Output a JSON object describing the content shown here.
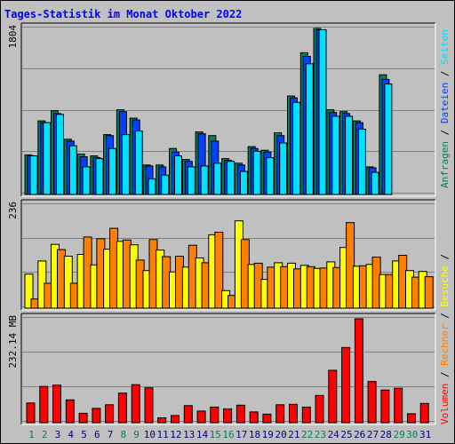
{
  "title": "Tages-Statistik im Monat Oktober 2022",
  "colors": {
    "frame_bg": "#c0c0c0",
    "plot_bg": "#c0c0c0",
    "grid": "#808080",
    "anfragen": "#00805c",
    "dateien": "#0040ff",
    "seiten": "#00e0ff",
    "besuche": "#ffff00",
    "rechner": "#ff8000",
    "volumen": "#ff0000",
    "weekday_label": "#000080",
    "weekend_label": "#00805c"
  },
  "side_legend": {
    "anfragen": "Anfragen",
    "dateien": "Dateien",
    "seiten": "Seiten",
    "besuche": "Besuche",
    "rechner": "Rechner",
    "volumen": "Volumen",
    "separator": " / "
  },
  "chart_data": [
    {
      "type": "bar",
      "max_label": "1804",
      "ylim": [
        0,
        1804
      ],
      "categories": [
        "1",
        "2",
        "3",
        "4",
        "5",
        "6",
        "7",
        "8",
        "9",
        "10",
        "11",
        "12",
        "13",
        "14",
        "15",
        "16",
        "17",
        "18",
        "19",
        "20",
        "21",
        "22",
        "23",
        "24",
        "25",
        "26",
        "27",
        "28",
        "29",
        "30",
        "31"
      ],
      "weekend_days": [
        "1",
        "2",
        "8",
        "9",
        "15",
        "16",
        "22",
        "23",
        "29",
        "30"
      ],
      "series": [
        {
          "name": "Anfragen",
          "values": [
            430,
            800,
            910,
            600,
            440,
            420,
            650,
            920,
            830,
            320,
            320,
            500,
            380,
            680,
            640,
            390,
            340,
            520,
            480,
            670,
            1070,
            1540,
            1804,
            920,
            900,
            800,
            300,
            1300,
            0,
            0,
            0
          ]
        },
        {
          "name": "Dateien",
          "values": [
            420,
            780,
            880,
            580,
            410,
            400,
            640,
            900,
            810,
            310,
            300,
            460,
            360,
            660,
            580,
            370,
            320,
            500,
            460,
            640,
            1050,
            1500,
            1790,
            890,
            880,
            780,
            290,
            1250,
            0,
            0,
            0
          ]
        },
        {
          "name": "Seiten",
          "values": [
            420,
            780,
            870,
            530,
            300,
            390,
            500,
            650,
            690,
            170,
            210,
            420,
            300,
            310,
            340,
            360,
            250,
            470,
            400,
            560,
            1000,
            1420,
            1790,
            850,
            850,
            710,
            240,
            1200,
            0,
            0,
            0
          ]
        }
      ]
    },
    {
      "type": "bar",
      "max_label": "236",
      "ylim": [
        0,
        236
      ],
      "categories": [
        "1",
        "2",
        "3",
        "4",
        "5",
        "6",
        "7",
        "8",
        "9",
        "10",
        "11",
        "12",
        "13",
        "14",
        "15",
        "16",
        "17",
        "18",
        "19",
        "20",
        "21",
        "22",
        "23",
        "24",
        "25",
        "26",
        "27",
        "28",
        "29",
        "30",
        "31"
      ],
      "series": [
        {
          "name": "Besuche",
          "values": [
            78,
            108,
            146,
            119,
            123,
            99,
            135,
            153,
            145,
            86,
            133,
            83,
            94,
            115,
            168,
            40,
            200,
            100,
            66,
            104,
            103,
            98,
            91,
            106,
            139,
            96,
            100,
            77,
            108,
            86,
            84
          ]
        },
        {
          "name": "Rechner",
          "values": [
            21,
            57,
            134,
            57,
            163,
            159,
            183,
            156,
            110,
            157,
            118,
            119,
            144,
            104,
            174,
            29,
            157,
            103,
            94,
            95,
            90,
            95,
            92,
            93,
            196,
            97,
            117,
            77,
            121,
            71,
            72
          ]
        }
      ]
    },
    {
      "type": "bar",
      "max_label": "232.14 MB",
      "ylim": [
        0,
        232.14
      ],
      "categories": [
        "1",
        "2",
        "3",
        "4",
        "5",
        "6",
        "7",
        "8",
        "9",
        "10",
        "11",
        "12",
        "13",
        "14",
        "15",
        "16",
        "17",
        "18",
        "19",
        "20",
        "21",
        "22",
        "23",
        "24",
        "25",
        "26",
        "27",
        "28",
        "29",
        "30",
        "31"
      ],
      "series": [
        {
          "name": "Volumen",
          "values": [
            44,
            81,
            84,
            51,
            21,
            32,
            40,
            66,
            85,
            78,
            11,
            16,
            38,
            26,
            35,
            31,
            39,
            24,
            19,
            40,
            41,
            35,
            61,
            117,
            168,
            232.14,
            92,
            73,
            77,
            20,
            43
          ]
        }
      ]
    }
  ],
  "x_labels": [
    "1",
    "2",
    "3",
    "4",
    "5",
    "6",
    "7",
    "8",
    "9",
    "10",
    "11",
    "12",
    "13",
    "14",
    "15",
    "16",
    "17",
    "18",
    "19",
    "20",
    "21",
    "22",
    "23",
    "24",
    "25",
    "26",
    "27",
    "28",
    "29",
    "30",
    "31"
  ]
}
